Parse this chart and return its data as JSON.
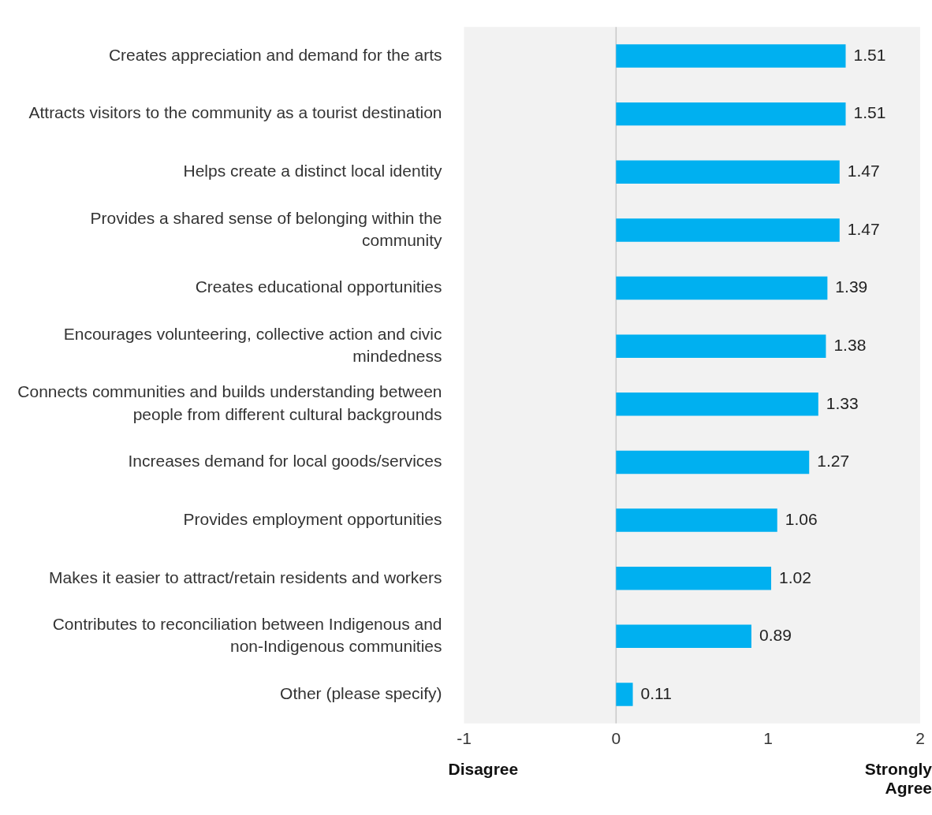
{
  "chart_data": {
    "type": "bar",
    "orientation": "horizontal",
    "categories": [
      "Creates appreciation and demand for the arts",
      "Attracts visitors to the community as a tourist destination",
      "Helps create a distinct local identity",
      "Provides a shared sense of belonging within the community",
      "Creates educational opportunities",
      "Encourages volunteering, collective action and civic mindedness",
      "Connects communities and builds understanding between people from different cultural backgrounds",
      "Increases demand for local goods/services",
      "Provides employment opportunities",
      "Makes it easier to attract/retain residents and workers",
      "Contributes to reconciliation between Indigenous and non-Indigenous communities",
      "Other (please specify)"
    ],
    "values": [
      1.51,
      1.51,
      1.47,
      1.47,
      1.39,
      1.38,
      1.33,
      1.27,
      1.06,
      1.02,
      0.89,
      0.11
    ],
    "color": "#00b0f0",
    "xlim": [
      -1,
      2
    ],
    "xticks": [
      -1,
      0,
      1,
      2
    ],
    "data_labels": true,
    "grid": false,
    "legend": false,
    "ref_lines": [
      {
        "axis": "x",
        "value": 0,
        "color": "#c8c8c8"
      }
    ],
    "annotations": [
      "Disagree",
      "Strongly Agree"
    ]
  }
}
